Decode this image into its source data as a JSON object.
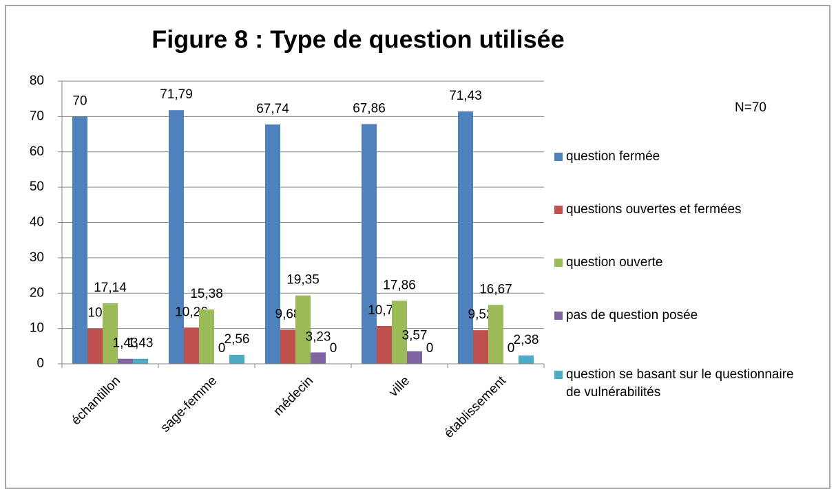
{
  "chart_data": {
    "type": "bar",
    "title": "Figure 8 : Type de question utilisée",
    "annotation": "N=70",
    "categories": [
      "échantillon",
      "sage-femme",
      "médecin",
      "ville",
      "établissement"
    ],
    "series": [
      {
        "name": "question fermée",
        "color": "#4f81bd",
        "values": [
          70,
          71.79,
          67.74,
          67.86,
          71.43
        ],
        "value_labels": [
          "70",
          "71,79",
          "67,74",
          "67,86",
          "71,43"
        ]
      },
      {
        "name": "questions ouvertes et fermées",
        "color": "#c0504d",
        "values": [
          10,
          10.26,
          9.68,
          10.71,
          9.52
        ],
        "value_labels": [
          "10",
          "10,26",
          "9,68",
          "10,71",
          "9,52"
        ]
      },
      {
        "name": "question ouverte",
        "color": "#9bbb59",
        "values": [
          17.14,
          15.38,
          19.35,
          17.86,
          16.67
        ],
        "value_labels": [
          "17,14",
          "15,38",
          "19,35",
          "17,86",
          "16,67"
        ]
      },
      {
        "name": "pas de question posée",
        "color": "#8064a2",
        "values": [
          1.43,
          0,
          3.23,
          3.57,
          0
        ],
        "value_labels": [
          "1,43",
          "0",
          "3,23",
          "3,57",
          "0"
        ]
      },
      {
        "name": "question se basant sur le questionnaire de vulnérabilités",
        "color": "#4bacc6",
        "values": [
          1.43,
          2.56,
          0,
          0,
          2.38
        ],
        "value_labels": [
          "1,43",
          "2,56",
          "0",
          "0",
          "2,38"
        ]
      }
    ],
    "ylim": [
      0,
      80
    ],
    "yticks": [
      0,
      10,
      20,
      30,
      40,
      50,
      60,
      70,
      80
    ],
    "grid": true,
    "legend": "right"
  }
}
